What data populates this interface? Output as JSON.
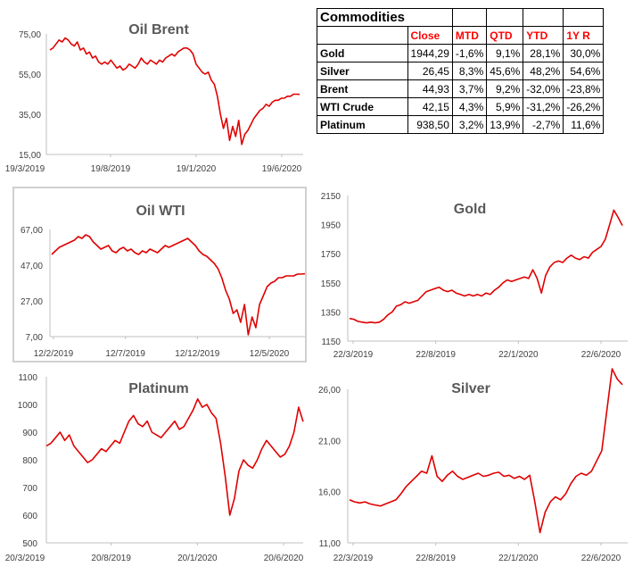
{
  "table": {
    "caption": "Commodities",
    "headers": [
      "",
      "Close",
      "MTD",
      "QTD",
      "YTD",
      "1Y R"
    ],
    "rows": [
      {
        "name": "Gold",
        "close": "1944,29",
        "mtd": "-1,6%",
        "qtd": "9,1%",
        "ytd": "28,1%",
        "y1": "30,0%"
      },
      {
        "name": "Silver",
        "close": "26,45",
        "mtd": "8,3%",
        "qtd": "45,6%",
        "ytd": "48,2%",
        "y1": "54,6%"
      },
      {
        "name": "Brent",
        "close": "44,93",
        "mtd": "3,7%",
        "qtd": "9,2%",
        "ytd": "-32,0%",
        "y1": "-23,8%"
      },
      {
        "name": "WTI Crude",
        "close": "42,15",
        "mtd": "4,3%",
        "qtd": "5,9%",
        "ytd": "-31,2%",
        "y1": "-26,2%"
      },
      {
        "name": "Platinum",
        "close": "938,50",
        "mtd": "3,2%",
        "qtd": "13,9%",
        "ytd": "-2,7%",
        "y1": "11,6%"
      }
    ]
  },
  "series_color": "#e00000",
  "chart_data": [
    {
      "id": "brent",
      "type": "line",
      "title": "Oil Brent",
      "ylim": [
        15,
        75
      ],
      "yticks": [
        "75,00",
        "55,00",
        "35,00",
        "15,00"
      ],
      "xticks": [
        "19/3/2019",
        "19/8/2019",
        "19/1/2020",
        "19/6/2020"
      ],
      "series": [
        {
          "values": [
            67,
            68,
            70,
            72,
            71,
            73,
            72,
            70,
            69,
            71,
            67,
            68,
            65,
            66,
            63,
            64,
            61,
            60,
            61,
            60,
            62,
            60,
            58,
            59,
            57,
            58,
            60,
            59,
            58,
            60,
            63,
            61,
            60,
            62,
            61,
            60,
            62,
            61,
            63,
            64,
            65,
            64,
            66,
            67,
            68,
            68,
            67,
            65,
            60,
            58,
            56,
            55,
            56,
            52,
            50,
            44,
            35,
            28,
            33,
            22,
            29,
            24,
            32,
            20,
            25,
            27,
            30,
            33,
            35,
            37,
            38,
            40,
            39,
            41,
            42,
            42,
            43,
            43,
            44,
            44,
            45,
            45,
            44.9
          ]
        }
      ]
    },
    {
      "id": "wti",
      "type": "line",
      "title": "Oil WTI",
      "ylim": [
        7,
        67
      ],
      "yticks": [
        "67,00",
        "47,00",
        "27,00",
        "7,00"
      ],
      "xticks": [
        "12/2/2019",
        "12/7/2019",
        "12/12/2019",
        "12/5/2020"
      ],
      "series": [
        {
          "values": [
            53,
            55,
            57,
            58,
            59,
            60,
            61,
            63,
            62,
            64,
            63,
            60,
            58,
            56,
            57,
            58,
            55,
            54,
            56,
            57,
            55,
            56,
            54,
            53,
            55,
            54,
            56,
            55,
            54,
            56,
            58,
            57,
            58,
            59,
            60,
            61,
            62,
            60,
            58,
            55,
            53,
            52,
            50,
            48,
            45,
            40,
            33,
            28,
            20,
            22,
            15,
            25,
            8,
            18,
            12,
            25,
            30,
            35,
            37,
            38,
            40,
            40,
            41,
            41,
            41,
            42,
            42,
            42.2
          ]
        }
      ]
    },
    {
      "id": "gold",
      "type": "line",
      "title": "Gold",
      "ylim": [
        1150,
        2150
      ],
      "yticks": [
        "2150",
        "1950",
        "1750",
        "1550",
        "1350",
        "1150"
      ],
      "xticks": [
        "22/3/2019",
        "22/8/2019",
        "22/1/2020",
        "22/6/2020"
      ],
      "series": [
        {
          "values": [
            1305,
            1300,
            1285,
            1280,
            1275,
            1280,
            1275,
            1280,
            1300,
            1330,
            1350,
            1390,
            1400,
            1420,
            1410,
            1420,
            1430,
            1460,
            1490,
            1500,
            1510,
            1520,
            1500,
            1490,
            1500,
            1480,
            1470,
            1460,
            1470,
            1460,
            1470,
            1460,
            1480,
            1470,
            1500,
            1520,
            1550,
            1570,
            1560,
            1570,
            1580,
            1590,
            1580,
            1640,
            1580,
            1480,
            1600,
            1660,
            1690,
            1700,
            1690,
            1720,
            1740,
            1720,
            1710,
            1730,
            1720,
            1760,
            1780,
            1800,
            1850,
            1950,
            2050,
            2000,
            1944
          ]
        }
      ]
    },
    {
      "id": "platinum",
      "type": "line",
      "title": "Platinum",
      "ylim": [
        500,
        1100
      ],
      "yticks": [
        "1100",
        "1000",
        "900",
        "800",
        "700",
        "600",
        "500"
      ],
      "xticks": [
        "20/3/2019",
        "20/8/2019",
        "20/1/2020",
        "20/6/2020"
      ],
      "series": [
        {
          "values": [
            850,
            860,
            880,
            900,
            870,
            890,
            850,
            830,
            810,
            790,
            800,
            820,
            840,
            830,
            850,
            870,
            860,
            900,
            940,
            960,
            930,
            920,
            940,
            900,
            890,
            880,
            900,
            920,
            940,
            910,
            920,
            950,
            980,
            1020,
            990,
            1000,
            970,
            950,
            860,
            740,
            600,
            660,
            760,
            800,
            780,
            770,
            800,
            840,
            870,
            850,
            830,
            810,
            820,
            850,
            900,
            990,
            938
          ]
        }
      ]
    },
    {
      "id": "silver",
      "type": "line",
      "title": "Silver",
      "ylim": [
        11,
        26
      ],
      "yticks": [
        "26,00",
        "21,00",
        "16,00",
        "11,00"
      ],
      "xticks": [
        "22/3/2019",
        "22/8/2019",
        "22/1/2020",
        "22/6/2020"
      ],
      "series": [
        {
          "values": [
            15.2,
            15.0,
            14.9,
            15.0,
            14.8,
            14.7,
            14.6,
            14.8,
            15.0,
            15.2,
            15.8,
            16.5,
            17.0,
            17.5,
            18.0,
            17.8,
            19.5,
            17.5,
            17.0,
            17.6,
            18.0,
            17.5,
            17.2,
            17.4,
            17.6,
            17.8,
            17.5,
            17.6,
            17.8,
            17.9,
            17.5,
            17.6,
            17.3,
            17.5,
            17.2,
            17.6,
            15.0,
            12.0,
            14.0,
            15.0,
            15.5,
            15.2,
            15.8,
            16.8,
            17.5,
            17.8,
            17.6,
            18.0,
            19.0,
            20.0,
            24.0,
            28.0,
            27.0,
            26.45
          ]
        }
      ]
    }
  ]
}
